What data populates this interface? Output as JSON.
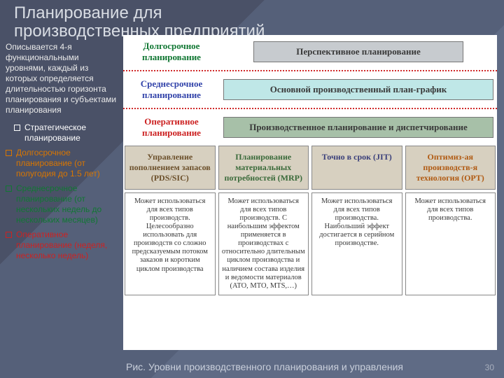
{
  "background": {
    "c1": "#4a5167",
    "c2": "#556079",
    "c3": "#5f6b85"
  },
  "title": "Планирование для производственных предприятий",
  "intro": "Описывается 4-я функциональными уровнями, каждый из которых определяется длительностью горизонта планирования и субъектами планирования",
  "bullets": [
    {
      "text": "Стратегическое планирование",
      "color": "#ffffff"
    },
    {
      "text": "Долгосрочное планирование (от полугодия до 1.5 лет)",
      "color": "#d97600"
    },
    {
      "text": "Среднесрочное планирование (от нескольких недель до нескольких месяцев)",
      "color": "#117733"
    },
    {
      "text": "Оперативное планирование (неделя, несколько недель)",
      "color": "#cc2222"
    }
  ],
  "rows": [
    {
      "label": "Долгосрочное планирование",
      "labelColor": "#117733",
      "box": "Перспективное планирование",
      "boxBg": "#c7cbcf"
    },
    {
      "label": "Среднесрочное планирование",
      "labelColor": "#3344aa",
      "box": "Основной производственный план-график",
      "boxBg": "#bfe7e7"
    },
    {
      "label": "Оперативное планирование",
      "labelColor": "#cc2222",
      "box": "Производственное планирование и диспетчирование",
      "boxBg": "#a7c0a8"
    }
  ],
  "sepColor": "#d02a2a",
  "grid": {
    "headBg": "#d7d0c0",
    "cells": [
      {
        "t": "Управление пополнением запасов (PDS/SIC)",
        "c": "#6b4f2a"
      },
      {
        "t": "Планирование материальных потребностей (MRP)",
        "c": "#3a6a3a"
      },
      {
        "t": "Точно в срок (JIT)",
        "c": "#3a3f7a"
      },
      {
        "t": "Оптимиз-ая производств-я технология (OPT)",
        "c": "#b05a12"
      }
    ],
    "desc": [
      "Может использоваться для всех типов производств. Целесообразно использовать для производств со сложно предсказуемым потоком заказов и коротким циклом производства",
      "Может использоваться для всех типов производств.  С наибольшим эффектом применяется в производствах с относительно длительным циклом производства и наличием состава изделия и ведомости материалов  (ATO, MTO,  MTS,…)",
      "Может использоваться для всех типов производства. Наибольший эффект достигается в серийном производстве.",
      "Может использоваться для всех типов производства."
    ]
  },
  "caption": "Рис.   Уровни производственного планирования и управления",
  "page": "30"
}
